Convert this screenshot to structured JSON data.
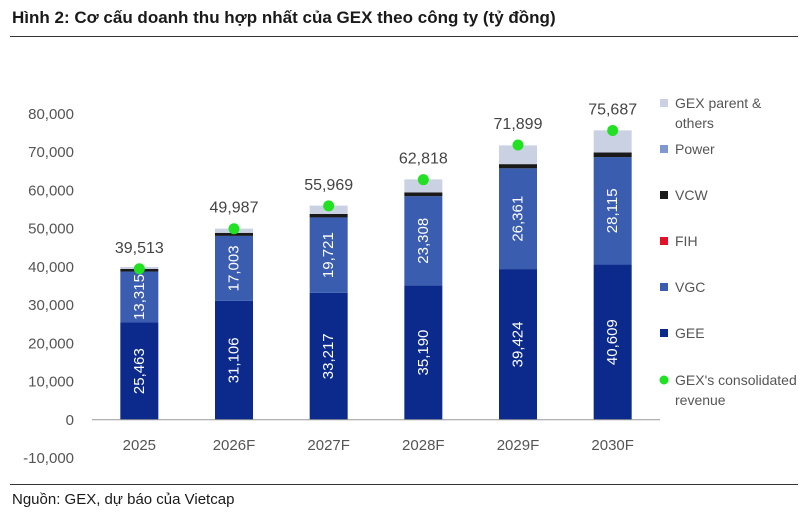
{
  "header": {
    "title": "Hình 2: Cơ cấu doanh thu hợp nhất của GEX theo công ty (tỷ đồng)"
  },
  "footer": {
    "source": "Nguồn: GEX, dự báo của Vietcap"
  },
  "colors": {
    "GEE": "#0b2a8c",
    "VGC": "#3a5db0",
    "FIH": "#e3102a",
    "VCW": "#1a1a1a",
    "Power": "#7f98cf",
    "GEX parent & others": "#c9d1e2",
    "marker": "#22e022",
    "axis": "#999999"
  },
  "chart_data": {
    "type": "bar",
    "stacked": true,
    "categories": [
      "2025",
      "2026F",
      "2027F",
      "2028F",
      "2029F",
      "2030F"
    ],
    "ylim": [
      -10000,
      80000
    ],
    "yticks": [
      -10000,
      0,
      10000,
      20000,
      30000,
      40000,
      50000,
      60000,
      70000,
      80000
    ],
    "ytick_labels": [
      "-10,000",
      "0",
      "10,000",
      "20,000",
      "30,000",
      "40,000",
      "50,000",
      "60,000",
      "70,000",
      "80,000"
    ],
    "series": [
      {
        "name": "GEE",
        "values": [
          25463,
          31106,
          33217,
          35190,
          39424,
          40609
        ],
        "labels": [
          "25,463",
          "31,106",
          "33,217",
          "35,190",
          "39,424",
          "40,609"
        ]
      },
      {
        "name": "VGC",
        "values": [
          13315,
          17003,
          19721,
          23308,
          26361,
          28115
        ],
        "labels": [
          "13,315",
          "17,003",
          "19,721",
          "23,308",
          "26,361",
          "28,115"
        ]
      },
      {
        "name": "FIH",
        "values": [
          0,
          0,
          0,
          0,
          0,
          0
        ]
      },
      {
        "name": "VCW",
        "values": [
          700,
          800,
          900,
          1000,
          1100,
          1200
        ]
      },
      {
        "name": "Power",
        "values": [
          0,
          0,
          0,
          0,
          0,
          0
        ]
      },
      {
        "name": "GEX parent & others",
        "values": [
          500,
          1100,
          2200,
          3400,
          4900,
          5800
        ]
      }
    ],
    "consolidated": {
      "name": "GEX's consolidated revenue",
      "values": [
        39513,
        49987,
        55969,
        62818,
        71899,
        75687
      ],
      "labels": [
        "39,513",
        "49,987",
        "55,969",
        "62,818",
        "71,899",
        "75,687"
      ]
    },
    "legend": {
      "placement": "right",
      "items": [
        {
          "key": "GEX parent & others",
          "lines": [
            "GEX parent &",
            "others"
          ],
          "marker": "square"
        },
        {
          "key": "Power",
          "lines": [
            "Power"
          ],
          "marker": "square"
        },
        {
          "key": "VCW",
          "lines": [
            "VCW"
          ],
          "marker": "square"
        },
        {
          "key": "FIH",
          "lines": [
            "FIH"
          ],
          "marker": "square"
        },
        {
          "key": "VGC",
          "lines": [
            "VGC"
          ],
          "marker": "square"
        },
        {
          "key": "GEE",
          "lines": [
            "GEE"
          ],
          "marker": "square"
        },
        {
          "key": "marker",
          "lines": [
            "GEX's consolidated",
            "revenue"
          ],
          "marker": "dot"
        }
      ]
    }
  }
}
